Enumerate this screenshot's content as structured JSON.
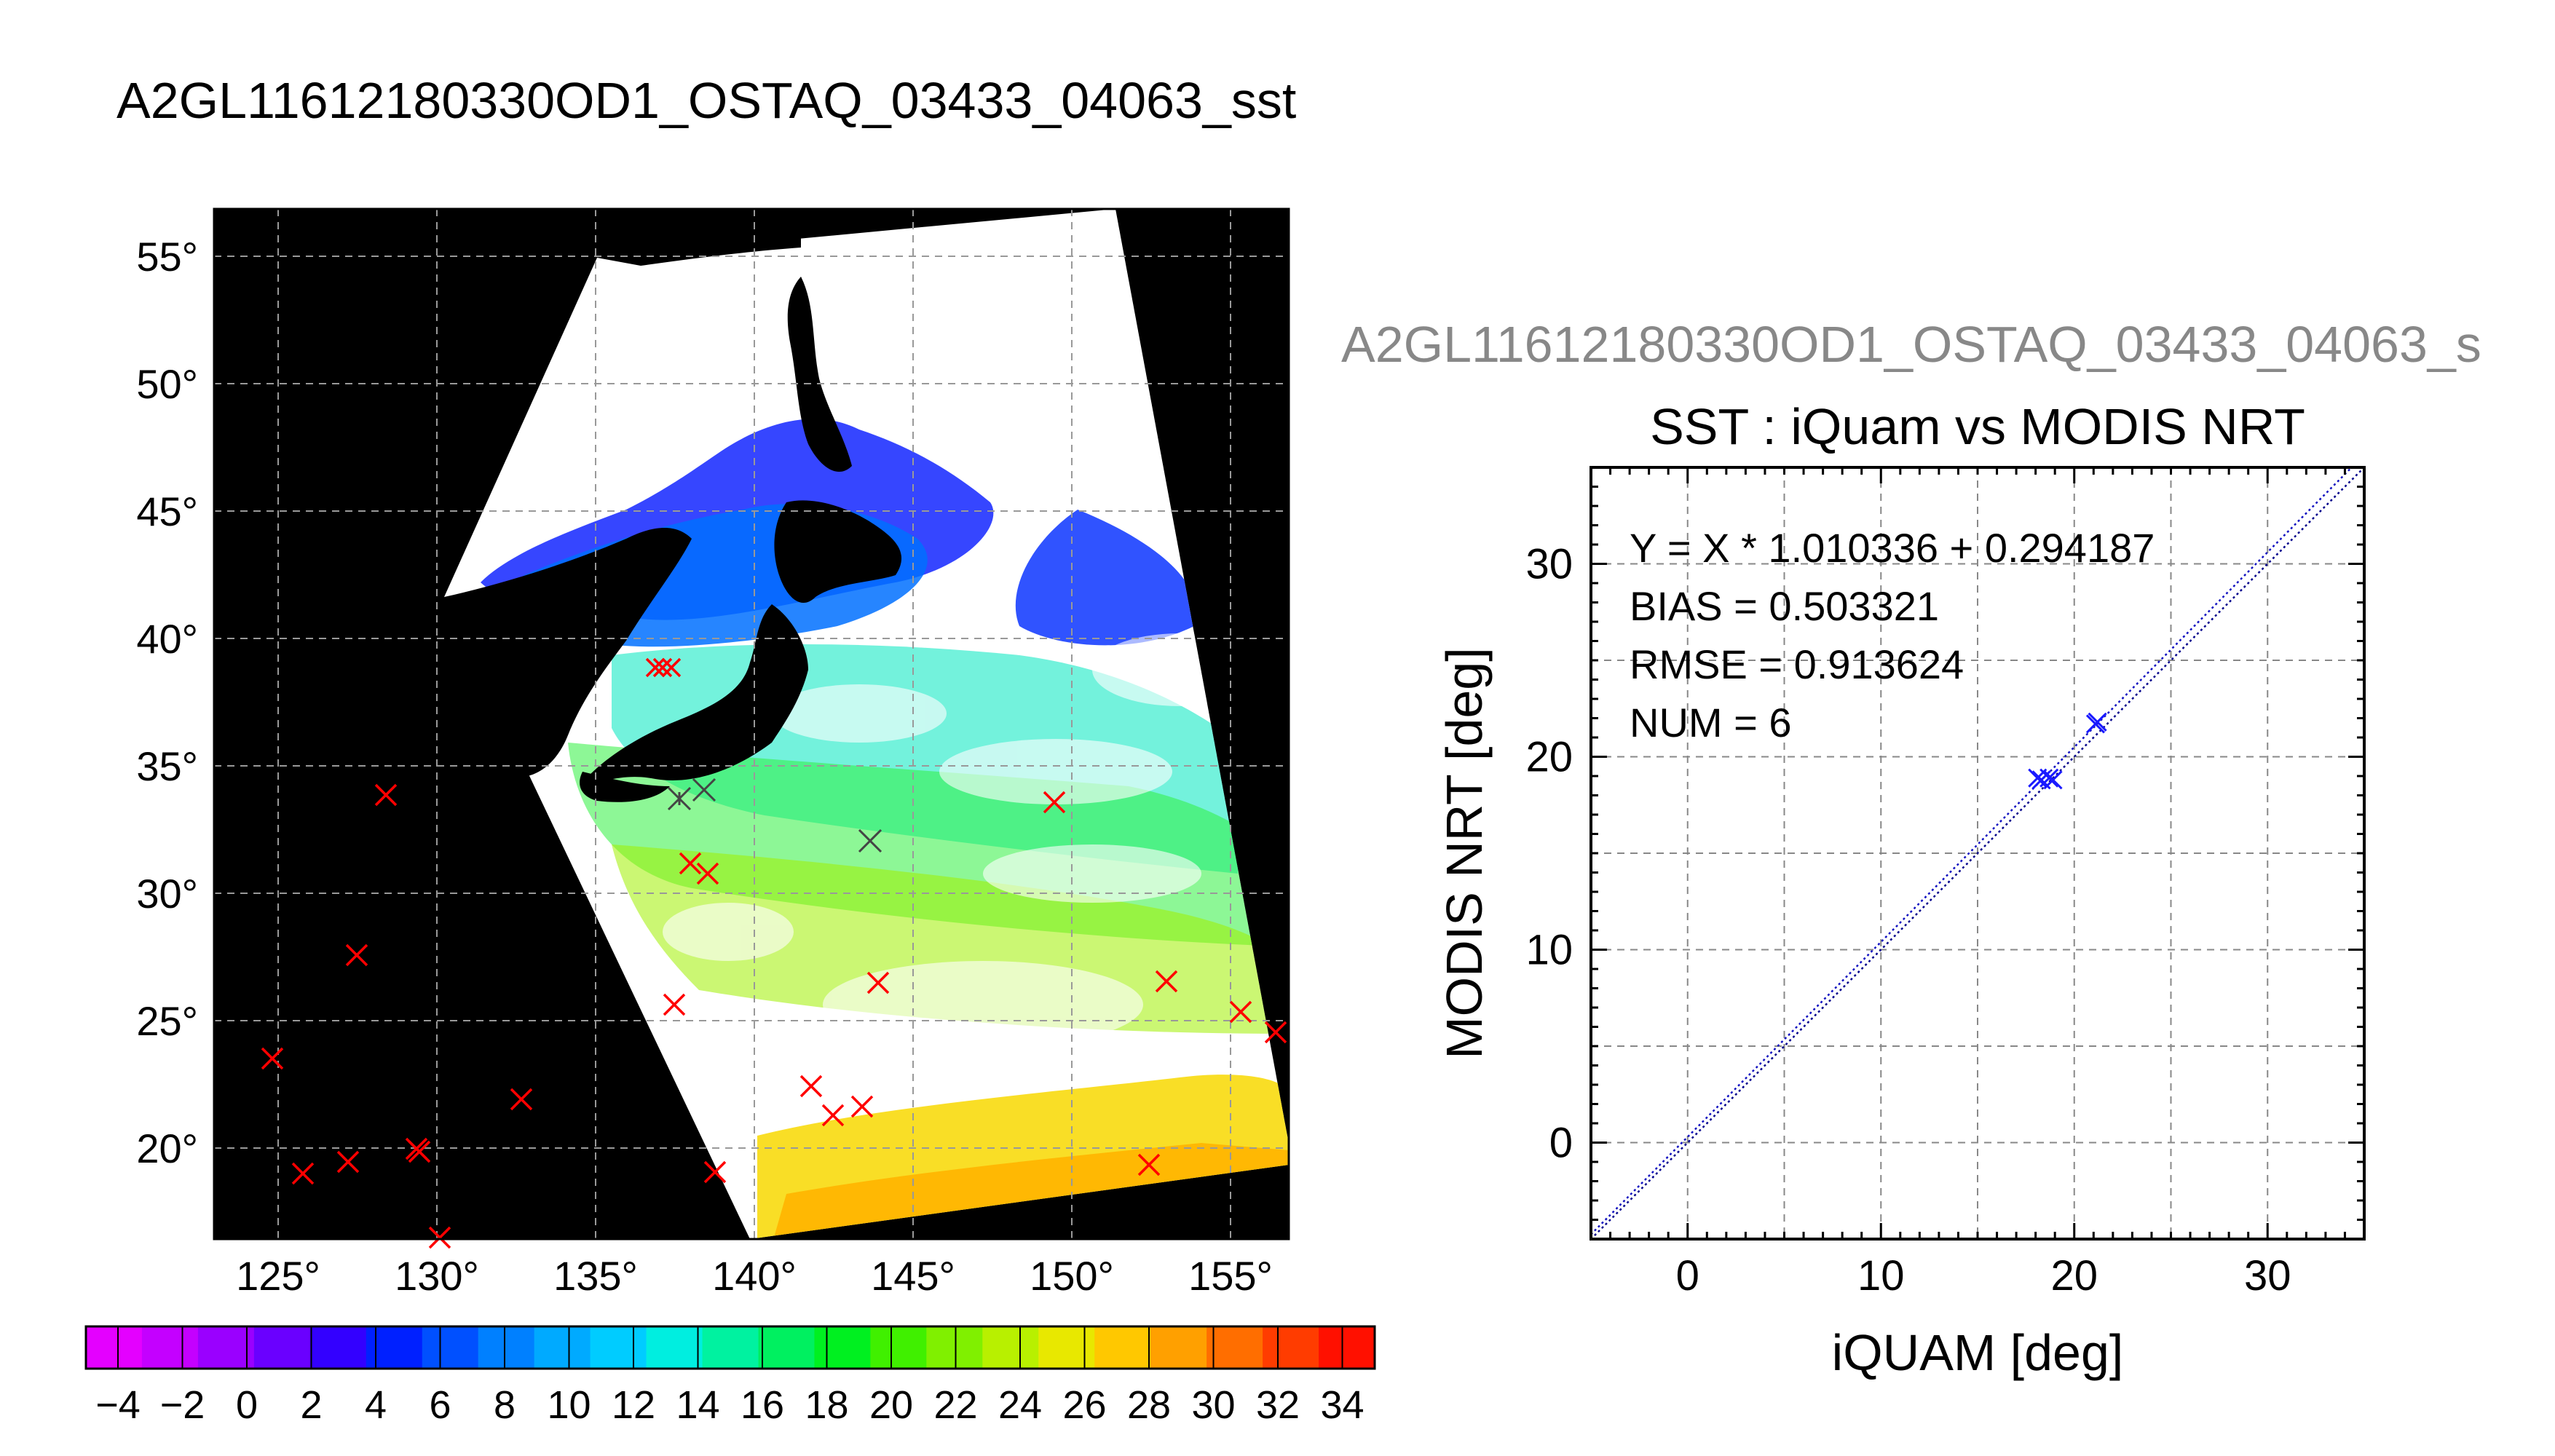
{
  "main_title": "A2GL11612180330OD1_OSTAQ_03433_04063_sst",
  "map": {
    "lat_ticks": [
      55,
      50,
      45,
      40,
      35,
      30,
      25,
      20
    ],
    "lon_ticks": [
      125,
      130,
      135,
      140,
      145,
      150,
      155
    ],
    "degree_symbol": "°",
    "colorbar_labels": [
      "−4",
      "−2",
      "0",
      "2",
      "4",
      "6",
      "8",
      "10",
      "12",
      "14",
      "16",
      "18",
      "20",
      "22",
      "24",
      "26",
      "28",
      "30",
      "32",
      "34"
    ],
    "colorbar_colors": [
      "#e400ff",
      "#c400ff",
      "#9a00ff",
      "#6a00ff",
      "#3300ff",
      "#0020ff",
      "#0050ff",
      "#0080ff",
      "#00aaff",
      "#00ccff",
      "#00eee0",
      "#00f2a0",
      "#00f060",
      "#00f020",
      "#40f000",
      "#80f000",
      "#b8f000",
      "#e8e800",
      "#ffc800",
      "#ffa000",
      "#ff6e00",
      "#ff3c00",
      "#ff1000"
    ]
  },
  "chart_data": {
    "type": "scatter",
    "file_label": "A2GL11612180330OD1_OSTAQ_03433_04063_s",
    "title": "SST : iQuam vs MODIS NRT",
    "xlabel": "iQUAM [deg]",
    "ylabel": "MODIS NRT [deg]",
    "xlim": [
      -5,
      35
    ],
    "ylim": [
      -5,
      35
    ],
    "x_ticks": [
      0,
      10,
      20,
      30
    ],
    "y_ticks": [
      0,
      10,
      20,
      30
    ],
    "grid": true,
    "annotations": [
      "Y = X * 1.010336 + 0.294187",
      "BIAS = 0.503321",
      "RMSE = 0.913624",
      "NUM = 6"
    ],
    "fit": {
      "slope": 1.010336,
      "intercept": 0.294187
    },
    "points": [
      {
        "x": 18.1,
        "y": 18.9
      },
      {
        "x": 18.3,
        "y": 18.8
      },
      {
        "x": 18.9,
        "y": 18.8
      },
      {
        "x": 18.7,
        "y": 18.9
      },
      {
        "x": 21.1,
        "y": 21.7
      },
      {
        "x": 21.2,
        "y": 21.8
      }
    ]
  }
}
